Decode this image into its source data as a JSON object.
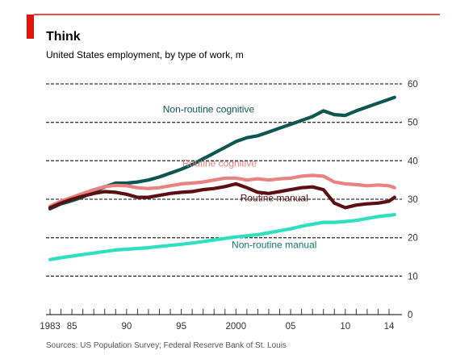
{
  "colors": {
    "accent": "#e3120b",
    "grid": "#3a3a3a",
    "text": "#1a1a1a",
    "source": "#555555"
  },
  "header": {
    "title": "Think",
    "subtitle": "United States employment, by type of work, m"
  },
  "source_note": "Sources: US Population Survey; Federal Reserve Bank of St. Louis",
  "chart_data": {
    "type": "line",
    "title": "Think",
    "subtitle": "United States employment, by type of work, m",
    "xlabel": "",
    "ylabel": "",
    "xlim": [
      1983,
      2014.6
    ],
    "ylim": [
      0,
      60
    ],
    "y_ticks": [
      0,
      10,
      20,
      30,
      40,
      50,
      60
    ],
    "y_tick_labels": [
      "0",
      "10",
      "20",
      "30",
      "40",
      "50",
      "60"
    ],
    "y_axis_side": "right",
    "x_tick_years": [
      1983,
      1984,
      1985,
      1986,
      1987,
      1988,
      1989,
      1990,
      1991,
      1992,
      1993,
      1994,
      1995,
      1996,
      1997,
      1998,
      1999,
      2000,
      2001,
      2002,
      2003,
      2004,
      2005,
      2006,
      2007,
      2008,
      2009,
      2010,
      2011,
      2012,
      2013,
      2014
    ],
    "x_tick_labels": [
      {
        "value": 1983,
        "label": "1983"
      },
      {
        "value": 1985,
        "label": "85"
      },
      {
        "value": 1990,
        "label": "90"
      },
      {
        "value": 1995,
        "label": "95"
      },
      {
        "value": 2000,
        "label": "2000"
      },
      {
        "value": 2005,
        "label": "05"
      },
      {
        "value": 2010,
        "label": "10"
      },
      {
        "value": 2014,
        "label": "14"
      }
    ],
    "grid": "dashed horizontal",
    "series": [
      {
        "name": "Non-routine cognitive",
        "color": "#0c5550",
        "label_at": [
          1997.5,
          52.6
        ],
        "points": [
          [
            1983,
            27.5
          ],
          [
            1984,
            28.8
          ],
          [
            1985,
            29.6
          ],
          [
            1986,
            30.6
          ],
          [
            1987,
            32.0
          ],
          [
            1988,
            33.2
          ],
          [
            1989,
            34.2
          ],
          [
            1990,
            34.2
          ],
          [
            1991,
            34.5
          ],
          [
            1992,
            35.0
          ],
          [
            1993,
            35.8
          ],
          [
            1994,
            36.8
          ],
          [
            1995,
            37.8
          ],
          [
            1996,
            39.0
          ],
          [
            1997,
            40.5
          ],
          [
            1998,
            42.0
          ],
          [
            1999,
            43.5
          ],
          [
            2000,
            45.0
          ],
          [
            2001,
            46.0
          ],
          [
            2002,
            46.5
          ],
          [
            2003,
            47.5
          ],
          [
            2004,
            48.5
          ],
          [
            2005,
            49.5
          ],
          [
            2006,
            50.5
          ],
          [
            2007,
            51.5
          ],
          [
            2008,
            53.0
          ],
          [
            2009,
            52.0
          ],
          [
            2010,
            51.8
          ],
          [
            2011,
            53.0
          ],
          [
            2012,
            54.0
          ],
          [
            2013,
            55.0
          ],
          [
            2014,
            56.0
          ],
          [
            2014.5,
            56.5
          ]
        ]
      },
      {
        "name": "Routine cognitive",
        "color": "#e8837f",
        "label_at": [
          1998.5,
          38.5
        ],
        "points": [
          [
            1983,
            28.2
          ],
          [
            1984,
            29.5
          ],
          [
            1985,
            30.5
          ],
          [
            1986,
            31.5
          ],
          [
            1987,
            32.5
          ],
          [
            1988,
            33.3
          ],
          [
            1989,
            33.6
          ],
          [
            1990,
            33.5
          ],
          [
            1991,
            33.0
          ],
          [
            1992,
            32.8
          ],
          [
            1993,
            33.0
          ],
          [
            1994,
            33.5
          ],
          [
            1995,
            34.0
          ],
          [
            1996,
            34.2
          ],
          [
            1997,
            34.5
          ],
          [
            1998,
            35.0
          ],
          [
            1999,
            35.5
          ],
          [
            2000,
            35.5
          ],
          [
            2001,
            35.0
          ],
          [
            2002,
            35.3
          ],
          [
            2003,
            35.0
          ],
          [
            2004,
            35.3
          ],
          [
            2005,
            35.5
          ],
          [
            2006,
            36.0
          ],
          [
            2007,
            36.2
          ],
          [
            2008,
            36.0
          ],
          [
            2009,
            34.5
          ],
          [
            2010,
            34.0
          ],
          [
            2011,
            33.8
          ],
          [
            2012,
            33.5
          ],
          [
            2013,
            33.7
          ],
          [
            2014,
            33.5
          ],
          [
            2014.5,
            33.0
          ]
        ]
      },
      {
        "name": "Routine manual",
        "color": "#5c0f12",
        "label_at": [
          2003.5,
          29.5
        ],
        "points": [
          [
            1983,
            27.8
          ],
          [
            1984,
            29.0
          ],
          [
            1985,
            30.0
          ],
          [
            1986,
            30.8
          ],
          [
            1987,
            31.5
          ],
          [
            1988,
            32.0
          ],
          [
            1989,
            31.8
          ],
          [
            1990,
            31.3
          ],
          [
            1991,
            30.5
          ],
          [
            1992,
            30.5
          ],
          [
            1993,
            31.0
          ],
          [
            1994,
            31.5
          ],
          [
            1995,
            31.8
          ],
          [
            1996,
            32.0
          ],
          [
            1997,
            32.5
          ],
          [
            1998,
            32.8
          ],
          [
            1999,
            33.3
          ],
          [
            2000,
            34.0
          ],
          [
            2001,
            33.0
          ],
          [
            2002,
            31.8
          ],
          [
            2003,
            31.5
          ],
          [
            2004,
            32.0
          ],
          [
            2005,
            32.5
          ],
          [
            2006,
            33.0
          ],
          [
            2007,
            33.2
          ],
          [
            2008,
            32.5
          ],
          [
            2009,
            29.0
          ],
          [
            2010,
            27.8
          ],
          [
            2011,
            28.5
          ],
          [
            2012,
            28.8
          ],
          [
            2013,
            29.0
          ],
          [
            2014,
            29.5
          ],
          [
            2014.5,
            30.5
          ]
        ]
      },
      {
        "name": "Non-routine manual",
        "color": "#2ee0c0",
        "label_at": [
          2003.5,
          17.3
        ],
        "points": [
          [
            1983,
            14.3
          ],
          [
            1984,
            14.8
          ],
          [
            1985,
            15.2
          ],
          [
            1986,
            15.6
          ],
          [
            1987,
            16.0
          ],
          [
            1988,
            16.4
          ],
          [
            1989,
            16.8
          ],
          [
            1990,
            17.0
          ],
          [
            1991,
            17.2
          ],
          [
            1992,
            17.4
          ],
          [
            1993,
            17.7
          ],
          [
            1994,
            18.0
          ],
          [
            1995,
            18.3
          ],
          [
            1996,
            18.6
          ],
          [
            1997,
            19.0
          ],
          [
            1998,
            19.4
          ],
          [
            1999,
            19.8
          ],
          [
            2000,
            20.2
          ],
          [
            2001,
            20.5
          ],
          [
            2002,
            20.8
          ],
          [
            2003,
            21.3
          ],
          [
            2004,
            21.8
          ],
          [
            2005,
            22.3
          ],
          [
            2006,
            23.0
          ],
          [
            2007,
            23.5
          ],
          [
            2008,
            24.0
          ],
          [
            2009,
            24.0
          ],
          [
            2010,
            24.2
          ],
          [
            2011,
            24.5
          ],
          [
            2012,
            25.0
          ],
          [
            2013,
            25.5
          ],
          [
            2014,
            25.8
          ],
          [
            2014.5,
            26.0
          ]
        ]
      }
    ]
  }
}
